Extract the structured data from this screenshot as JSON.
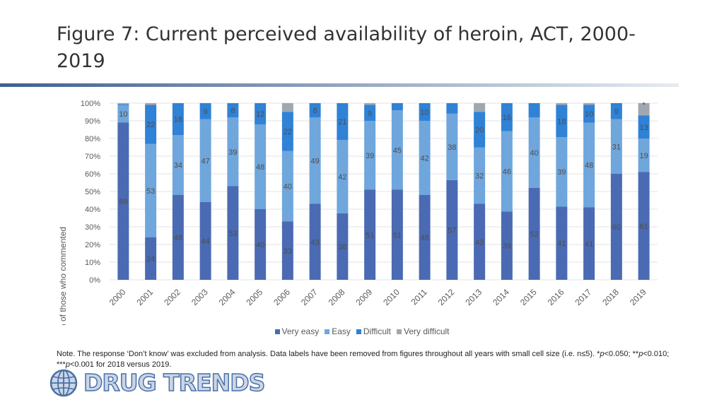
{
  "page": {
    "title": "Figure 7: Current perceived availability of heroin, ACT, 2000-2019",
    "note_text": "Note. The response ‘Don’t know’ was excluded from analysis. Data labels have been removed from figures throughout all years with small cell size (i.e. n≤5). *",
    "note_p1": "p",
    "note_t1": "<0.050; **",
    "note_p2": "p",
    "note_t2": "<0.010; ***",
    "note_p3": "p",
    "note_t3": "<0.001 for 2018 versus 2019.",
    "logo_text": "DRUG TRENDS"
  },
  "colors": {
    "very_easy": "#4a6bb3",
    "easy": "#6fa6dc",
    "difficult": "#2f82d6",
    "very_difficult": "#a0a7b0",
    "axis_text": "#595959",
    "grid": "#e3e3e3",
    "title_rule_left": "#3f5f8f",
    "title_rule_right": "#e6ebf1",
    "logo_fill": "#c9d6e6",
    "logo_stroke": "#4a6fa8"
  },
  "chart_data": {
    "type": "bar",
    "stacked": true,
    "title": "",
    "xlabel": "",
    "ylabel": "% of those who commented",
    "ylim": [
      0,
      100
    ],
    "yticks": [
      "0%",
      "10%",
      "20%",
      "30%",
      "40%",
      "50%",
      "60%",
      "70%",
      "80%",
      "90%",
      "100%"
    ],
    "grid": true,
    "legend_position": "bottom",
    "categories": [
      "2000",
      "2001",
      "2002",
      "2003",
      "2004",
      "2005",
      "2006",
      "2007",
      "2008",
      "2009",
      "2010",
      "2011",
      "2012",
      "2013",
      "2014",
      "2015",
      "2016",
      "2017",
      "2018",
      "2019"
    ],
    "series": [
      {
        "name": "Very easy",
        "values": [
          89,
          24,
          48,
          44,
          53,
          40,
          33,
          43,
          38,
          51,
          51,
          48,
          57,
          43,
          39,
          52,
          41,
          41,
          60,
          61
        ],
        "labels": [
          "89",
          "24",
          "48",
          "44",
          "53",
          "40",
          "33",
          "43",
          "38",
          "51",
          "51",
          "48",
          "57",
          "43",
          "39",
          "52",
          "41",
          "41",
          "60",
          "61"
        ]
      },
      {
        "name": "Easy",
        "values": [
          10,
          53,
          34,
          47,
          39,
          48,
          40,
          49,
          42,
          39,
          45,
          42,
          38,
          32,
          46,
          40,
          39,
          48,
          31,
          19
        ],
        "labels": [
          "10",
          "53",
          "34",
          "47",
          "39",
          "48",
          "40",
          "49",
          "42",
          "39",
          "45",
          "42",
          "38",
          "32",
          "46",
          "40",
          "39",
          "48",
          "31",
          "19"
        ]
      },
      {
        "name": "Difficult",
        "values": [
          0.5,
          22,
          18,
          9,
          8,
          12,
          22,
          8,
          21,
          9,
          4,
          10,
          6,
          20,
          16,
          8,
          18,
          10,
          9,
          13
        ],
        "labels": [
          "",
          "22",
          "18",
          "9",
          "8",
          "12",
          "22",
          "8",
          "21",
          "9",
          "",
          "10",
          "",
          "20",
          "16",
          "",
          "18",
          "10",
          "9",
          "13"
        ]
      },
      {
        "name": "Very difficult",
        "values": [
          0.5,
          1,
          0,
          0,
          0,
          0,
          5,
          0,
          0,
          1,
          0,
          0,
          0,
          5,
          0,
          0,
          1,
          1,
          0,
          7
        ],
        "labels": [
          "",
          "",
          "",
          "",
          "",
          "",
          "",
          "",
          "",
          "",
          "",
          "",
          "",
          "",
          "",
          "",
          "",
          "",
          "",
          "*"
        ]
      }
    ]
  }
}
